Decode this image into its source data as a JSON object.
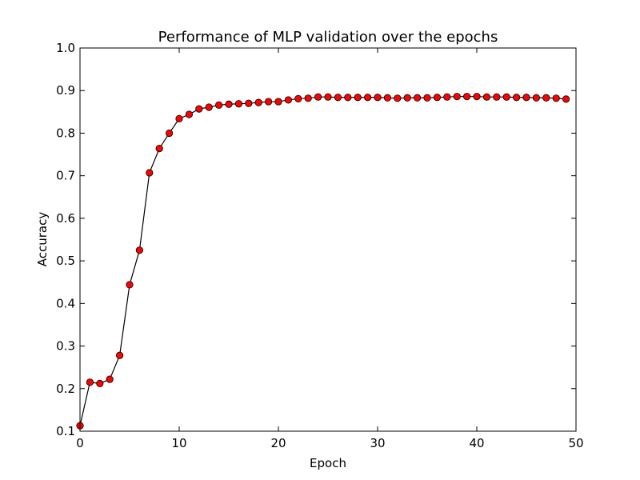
{
  "chart_data": {
    "type": "line",
    "title": "Performance of MLP validation over the epochs",
    "xlabel": "Epoch",
    "ylabel": "Accuracy",
    "xlim": [
      0,
      50
    ],
    "ylim": [
      0.1,
      1.0
    ],
    "xticks": [
      "0",
      "10",
      "20",
      "30",
      "40",
      "50"
    ],
    "yticks": [
      "0.1",
      "0.2",
      "0.3",
      "0.4",
      "0.5",
      "0.6",
      "0.7",
      "0.8",
      "0.9",
      "1.0"
    ],
    "grid": false,
    "legend": "none",
    "line_color": "#000000",
    "marker_color": "#ff0000",
    "marker_edge_color": "#000000",
    "series": [
      {
        "x": [
          0,
          1,
          2,
          3,
          4,
          5,
          6,
          7,
          8,
          9,
          10,
          11,
          12,
          13,
          14,
          15,
          16,
          17,
          18,
          19,
          20,
          21,
          22,
          23,
          24,
          25,
          26,
          27,
          28,
          29,
          30,
          31,
          32,
          33,
          34,
          35,
          36,
          37,
          38,
          39,
          40,
          41,
          42,
          43,
          44,
          45,
          46,
          47,
          48,
          49
        ],
        "values": [
          0.113,
          0.215,
          0.212,
          0.222,
          0.278,
          0.444,
          0.525,
          0.707,
          0.764,
          0.8,
          0.834,
          0.844,
          0.857,
          0.861,
          0.866,
          0.868,
          0.869,
          0.87,
          0.872,
          0.874,
          0.874,
          0.878,
          0.881,
          0.882,
          0.885,
          0.885,
          0.884,
          0.884,
          0.884,
          0.884,
          0.884,
          0.883,
          0.882,
          0.883,
          0.883,
          0.883,
          0.884,
          0.885,
          0.886,
          0.886,
          0.886,
          0.885,
          0.885,
          0.885,
          0.884,
          0.884,
          0.883,
          0.883,
          0.882,
          0.88
        ]
      }
    ]
  }
}
